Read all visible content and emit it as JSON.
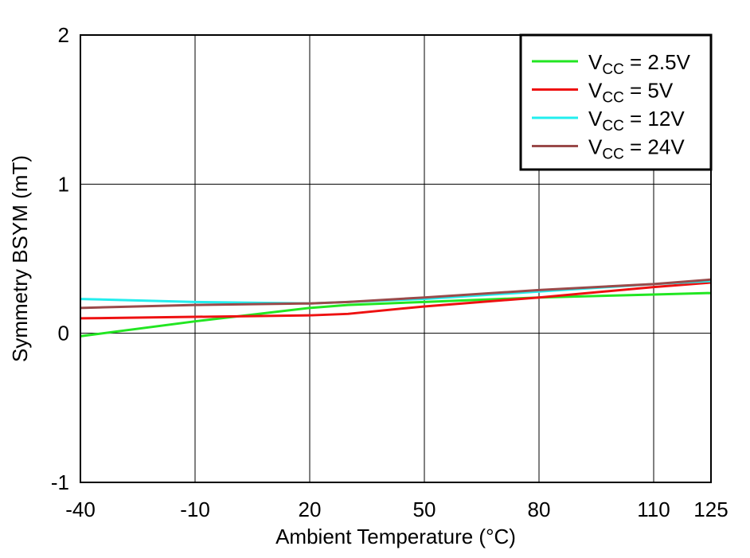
{
  "chart_data": {
    "type": "line",
    "x_label": "Ambient Temperature (°C)",
    "y_label": "Symmetry BSYM (mT)",
    "x": [
      -40,
      -10,
      20,
      30,
      50,
      80,
      110,
      125
    ],
    "series": [
      {
        "name": "VCC = 2.5V",
        "color": "#22e622",
        "values": [
          -0.02,
          0.08,
          0.17,
          0.19,
          0.21,
          0.24,
          0.26,
          0.27
        ]
      },
      {
        "name": "VCC = 5V",
        "color": "#ee1111",
        "values": [
          0.1,
          0.11,
          0.12,
          0.13,
          0.18,
          0.24,
          0.31,
          0.34
        ]
      },
      {
        "name": "VCC = 12V",
        "color": "#22eeee",
        "values": [
          0.23,
          0.21,
          0.2,
          0.21,
          0.23,
          0.28,
          0.33,
          0.35
        ]
      },
      {
        "name": "VCC = 24V",
        "color": "#9a4a4a",
        "values": [
          0.17,
          0.19,
          0.2,
          0.21,
          0.24,
          0.29,
          0.33,
          0.36
        ]
      }
    ],
    "xlim": [
      -40,
      125
    ],
    "xticks": [
      -40,
      -10,
      20,
      50,
      80,
      110,
      125
    ],
    "ylim": [
      -1,
      2
    ],
    "yticks": [
      -1,
      0,
      1,
      2
    ],
    "grid": true,
    "legend": "upper right"
  }
}
